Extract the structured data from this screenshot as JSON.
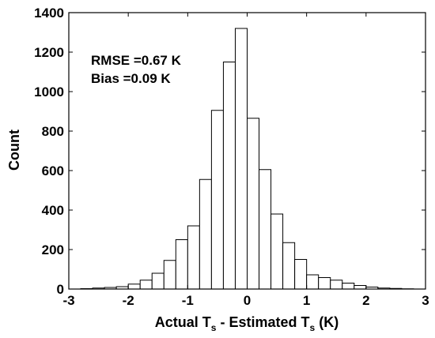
{
  "chart_data": {
    "type": "bar",
    "title": "",
    "xlabel": {
      "prefix": "Actual T",
      "sub1": "s",
      "middle": " - Estimated T",
      "sub2": "s",
      "suffix": " (K)"
    },
    "ylabel": "Count",
    "xlim": [
      -3,
      3
    ],
    "ylim": [
      0,
      1400
    ],
    "xticks": [
      -3,
      -2,
      -1,
      0,
      1,
      2,
      3
    ],
    "yticks": [
      0,
      200,
      400,
      600,
      800,
      1000,
      1200,
      1400
    ],
    "bin_width": 0.2,
    "bin_edges_start": -3.0,
    "values": [
      0,
      2,
      5,
      8,
      12,
      25,
      45,
      80,
      145,
      250,
      320,
      555,
      905,
      1150,
      1320,
      865,
      605,
      380,
      235,
      150,
      72,
      58,
      45,
      30,
      18,
      10,
      5,
      3,
      1,
      0
    ],
    "annotations": [
      "RMSE =0.67 K",
      "Bias =0.09 K"
    ],
    "grid": false,
    "colors": {
      "bar_fill": "#ffffff",
      "bar_stroke": "#000000",
      "axis": "#000000"
    }
  }
}
